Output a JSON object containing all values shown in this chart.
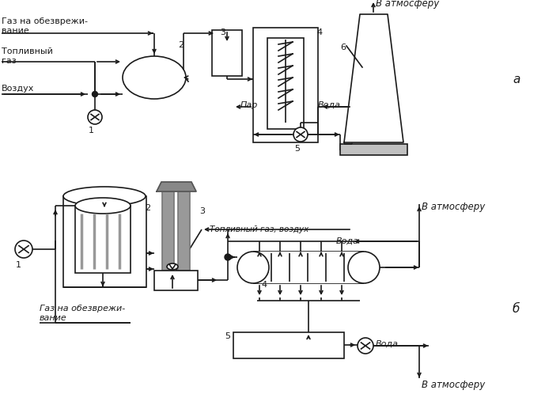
{
  "background": "#ffffff",
  "lc": "#1a1a1a",
  "gc": "#888888",
  "figsize": [
    6.89,
    4.98
  ],
  "dpi": 100,
  "texts": {
    "atm_a": "В атмосферу",
    "atm_b1": "В атмосферу",
    "atm_b2": "В атмосферу",
    "a_label": "а",
    "b_label": "б",
    "gaz_line1": "Газ на обезврежи-",
    "gaz_line2": "вание",
    "topliv_a1": "Топливный",
    "topliv_a2": "газ",
    "vozduh": "Воздух",
    "par": "Пар",
    "voda_a": "Вода",
    "gaz_b_line1": "Газ на обезврежи-",
    "gaz_b_line2": "вание",
    "topliv_vozduh": "Топливный газ, воздух",
    "voda_b1": "Вода",
    "voda_b2": "Вода",
    "n1": "1",
    "n2": "2",
    "n3": "3",
    "n4": "4",
    "n5": "5",
    "n6": "6"
  }
}
